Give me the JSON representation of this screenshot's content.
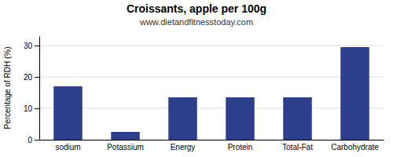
{
  "chart_data": {
    "type": "bar",
    "title": "Croissants, apple per 100g",
    "subtitle": "www.dietandfitnesstoday.com",
    "categories": [
      "sodium",
      "Potassium",
      "Energy",
      "Protein",
      "Total-Fat",
      "Carbohydrate"
    ],
    "values": [
      17,
      2.5,
      13.5,
      13.5,
      13.5,
      29.5
    ],
    "color": "#2d3f8c",
    "ylabel": "Percentage of RDH (%)",
    "ylim": [
      0,
      33
    ],
    "yticks": [
      0,
      10,
      20,
      30
    ],
    "grid": true
  }
}
